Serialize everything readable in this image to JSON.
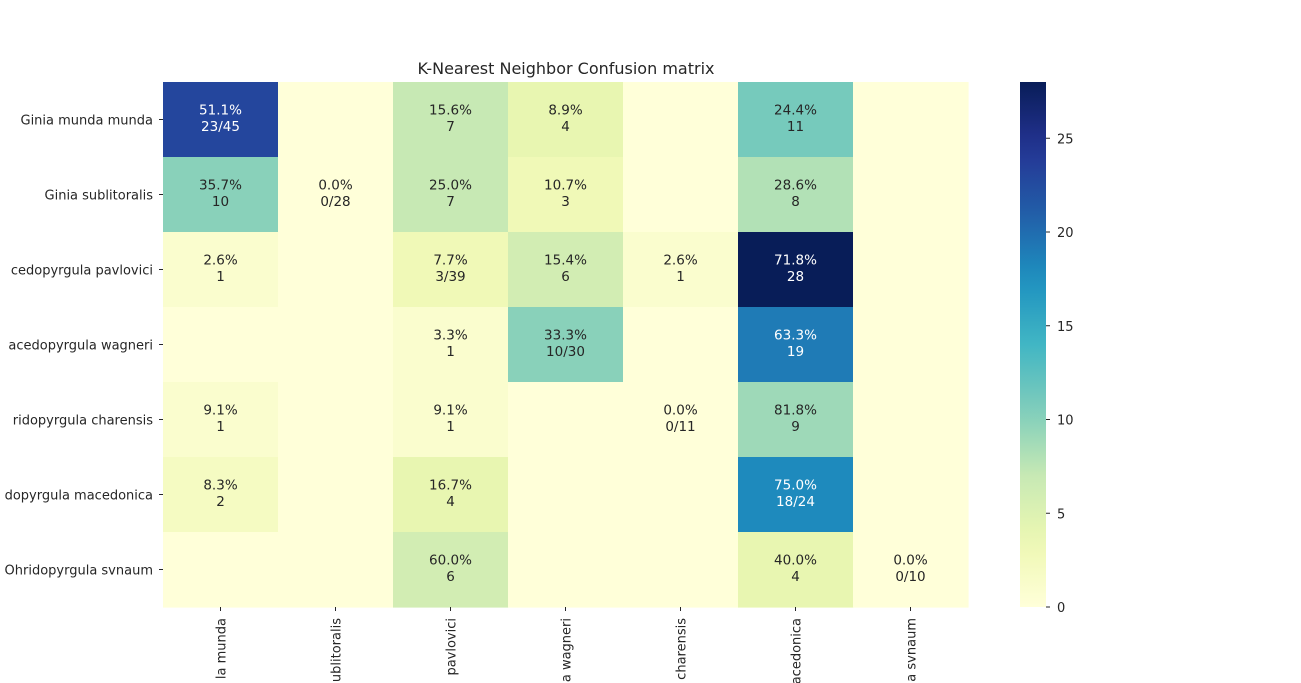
{
  "chart_data": {
    "type": "heatmap",
    "title": "K-Nearest Neighbor Confusion matrix",
    "rows": [
      "Ginia munda munda",
      "Ginia sublitoralis",
      "Macedopyrgula pavlovici",
      "Macedopyrgula wagneri",
      "Ohridopyrgula charensis",
      "Ohridopyrgula macedonica",
      "Ohridopyrgula svnaum"
    ],
    "row_labels_visible": [
      "Ginia munda munda",
      "Ginia sublitoralis",
      "cedopyrgula pavlovici",
      "acedopyrgula wagneri",
      "ridopyrgula charensis",
      "dopyrgula macedonica",
      "Ohridopyrgula svnaum"
    ],
    "col_labels_visible": [
      "la munda",
      "ublitoralis",
      "pavlovici",
      "a wagneri",
      "charensis",
      "acedonica",
      "a svnaum"
    ],
    "counts": [
      [
        23,
        0,
        7,
        4,
        0,
        11,
        0
      ],
      [
        10,
        0,
        7,
        3,
        0,
        8,
        0
      ],
      [
        1,
        0,
        3,
        6,
        1,
        28,
        0
      ],
      [
        0,
        0,
        1,
        10,
        0,
        19,
        0
      ],
      [
        1,
        0,
        1,
        0,
        0,
        9,
        0
      ],
      [
        2,
        0,
        4,
        0,
        0,
        18,
        0
      ],
      [
        0,
        0,
        6,
        0,
        0,
        4,
        0
      ]
    ],
    "annotations": [
      [
        "51.1%\n23/45",
        "",
        "15.6%\n7",
        "8.9%\n4",
        "",
        "24.4%\n11",
        ""
      ],
      [
        "35.7%\n10",
        "0.0%\n0/28",
        "25.0%\n7",
        "10.7%\n3",
        "",
        "28.6%\n8",
        ""
      ],
      [
        "2.6%\n1",
        "",
        "7.7%\n3/39",
        "15.4%\n6",
        "2.6%\n1",
        "71.8%\n28",
        ""
      ],
      [
        "",
        "",
        "3.3%\n1",
        "33.3%\n10/30",
        "",
        "63.3%\n19",
        ""
      ],
      [
        "9.1%\n1",
        "",
        "9.1%\n1",
        "",
        "0.0%\n0/11",
        "81.8%\n9",
        ""
      ],
      [
        "8.3%\n2",
        "",
        "16.7%\n4",
        "",
        "",
        "75.0%\n18/24",
        ""
      ],
      [
        "",
        "",
        "60.0%\n6",
        "",
        "",
        "40.0%\n4",
        "0.0%\n0/10"
      ]
    ],
    "colormap": "YlGnBu",
    "vmin": 0,
    "vmax": 28,
    "colorbar_ticks": [
      0,
      5,
      10,
      15,
      20,
      25
    ]
  }
}
